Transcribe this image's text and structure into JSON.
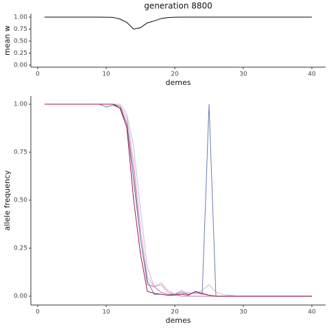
{
  "chart_data": [
    {
      "type": "line",
      "title": "generation 8800",
      "x_label": "demes",
      "y_label": "mean w",
      "x": [
        1,
        2,
        3,
        4,
        5,
        6,
        7,
        8,
        9,
        10,
        11,
        12,
        13,
        14,
        15,
        16,
        17,
        18,
        19,
        20,
        21,
        22,
        23,
        24,
        25,
        26,
        27,
        28,
        29,
        30,
        31,
        32,
        33,
        34,
        35,
        36,
        37,
        38,
        39,
        40
      ],
      "series": [
        {
          "color": "#000000",
          "values": [
            1,
            1,
            1,
            1,
            1,
            1,
            1,
            1,
            1,
            0.998,
            0.995,
            0.96,
            0.89,
            0.75,
            0.78,
            0.88,
            0.92,
            0.97,
            0.99,
            0.998,
            1,
            1,
            1,
            1,
            1,
            1,
            1,
            1,
            1,
            1,
            1,
            1,
            1,
            1,
            1,
            1,
            1,
            1,
            1,
            1
          ]
        }
      ],
      "xlim": [
        -1,
        42
      ],
      "xticks": [
        0,
        10,
        20,
        30,
        40
      ],
      "ylim": [
        -0.043,
        1.071
      ],
      "yticks": [
        {
          "value": 0,
          "label": "0.00"
        },
        {
          "value": 0.25,
          "label": "0.25"
        },
        {
          "value": 0.5,
          "label": "0.50"
        },
        {
          "value": 0.75,
          "label": "0.75"
        },
        {
          "value": 1,
          "label": "1.00"
        }
      ]
    },
    {
      "type": "line",
      "x_label": "demes",
      "y_label": "allele frequency",
      "x": [
        1,
        2,
        3,
        4,
        5,
        6,
        7,
        8,
        9,
        10,
        11,
        12,
        13,
        14,
        15,
        16,
        17,
        18,
        19,
        20,
        21,
        22,
        23,
        24,
        25,
        26,
        27,
        28,
        29,
        30,
        31,
        32,
        33,
        34,
        35,
        36,
        37,
        38,
        39,
        40
      ],
      "series": [
        {
          "color": "#c8b8dc",
          "values": [
            1,
            1,
            1,
            1,
            1,
            1,
            1,
            1,
            1,
            1,
            1,
            1,
            0.95,
            0.78,
            0.45,
            0.15,
            0.05,
            0.07,
            0.03,
            0.01,
            0.01,
            0.02,
            0.01,
            0.03,
            0.06,
            0.02,
            0.01,
            0.005,
            0,
            0,
            0,
            0,
            0,
            0,
            0,
            0,
            0,
            0,
            0,
            0
          ]
        },
        {
          "color": "#d9a0b8",
          "values": [
            1,
            1,
            1,
            1,
            1,
            1,
            1,
            1,
            1,
            1,
            1,
            0.99,
            0.93,
            0.7,
            0.35,
            0.1,
            0.05,
            0.06,
            0.02,
            0.01,
            0.03,
            0.01,
            0.02,
            0.01,
            0.005,
            0,
            0,
            0,
            0,
            0,
            0,
            0,
            0,
            0,
            0,
            0,
            0,
            0,
            0,
            0
          ]
        },
        {
          "color": "#b07aa0",
          "values": [
            1,
            1,
            1,
            1,
            1,
            1,
            1,
            1,
            1,
            1,
            1,
            0.99,
            0.9,
            0.65,
            0.3,
            0.06,
            0.05,
            0.02,
            0.01,
            0.01,
            0,
            0,
            0,
            0,
            0,
            0,
            0,
            0,
            0,
            0,
            0,
            0,
            0,
            0,
            0,
            0,
            0,
            0,
            0,
            0
          ]
        },
        {
          "color": "#6b7bb0",
          "values": [
            1,
            1,
            1,
            1,
            1,
            1,
            1,
            1,
            1,
            0.985,
            0.995,
            0.98,
            0.9,
            0.6,
            0.3,
            0.08,
            0.01,
            0.01,
            0.005,
            0.01,
            0.02,
            0.01,
            0.02,
            0.01,
            1,
            0,
            0,
            0,
            0,
            0,
            0,
            0,
            0,
            0,
            0,
            0,
            0,
            0,
            0,
            0
          ]
        },
        {
          "color": "#a0124a",
          "values": [
            1,
            1,
            1,
            1,
            1,
            1,
            1,
            1,
            1,
            1,
            1,
            0.98,
            0.88,
            0.5,
            0.22,
            0.025,
            0.015,
            0.01,
            0.005,
            0.005,
            0.01,
            0.005,
            0.025,
            0.015,
            0.005,
            0,
            0,
            0,
            0,
            0,
            0,
            0,
            0,
            0,
            0,
            0,
            0,
            0,
            0,
            0
          ]
        }
      ],
      "xlim": [
        -1,
        42
      ],
      "xticks": [
        0,
        10,
        20,
        30,
        40
      ],
      "ylim": [
        -0.046,
        1.043
      ],
      "yticks": [
        {
          "value": 0,
          "label": "0.00"
        },
        {
          "value": 0.25,
          "label": "0.25"
        },
        {
          "value": 0.5,
          "label": "0.50"
        },
        {
          "value": 0.75,
          "label": "0.75"
        },
        {
          "value": 1,
          "label": "1.00"
        }
      ]
    }
  ]
}
